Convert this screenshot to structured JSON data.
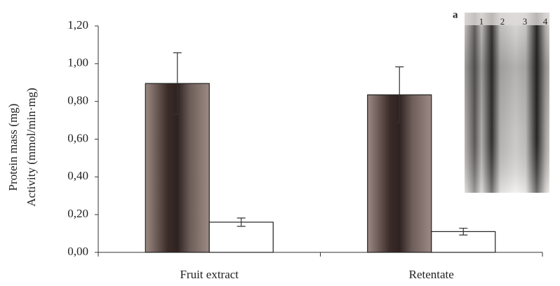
{
  "chart_data": {
    "type": "bar",
    "y_label": [
      "Protein mass (mg)",
      "Activity (mmol/min·mg)"
    ],
    "categories": [
      "Fruit extract",
      "Retentate"
    ],
    "series": [
      {
        "color": "#9c8a84",
        "values": [
          0.895,
          0.835
        ],
        "errors": [
          0.163,
          0.148
        ]
      },
      {
        "color": "#ffffff",
        "values": [
          0.16,
          0.11
        ],
        "errors": [
          0.022,
          0.018
        ]
      }
    ],
    "ylim": [
      0,
      1.2
    ],
    "yticks": [
      {
        "value": 0,
        "label": "0,00"
      },
      {
        "value": 0.2,
        "label": "0,20"
      },
      {
        "value": 0.4,
        "label": "0,40"
      },
      {
        "value": 0.6,
        "label": "0,60"
      },
      {
        "value": 0.8,
        "label": "0,80"
      },
      {
        "value": 1.0,
        "label": "1,00"
      },
      {
        "value": 1.2,
        "label": "1,20"
      }
    ],
    "inset": {
      "label": "a",
      "lanes": [
        "1",
        "2",
        "3",
        "4"
      ]
    }
  }
}
